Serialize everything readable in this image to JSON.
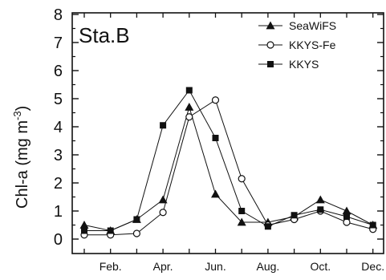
{
  "chart_data": {
    "type": "line",
    "title": "Sta.B",
    "ylabel": "Chl-a (mg m",
    "ylabel_sup": "-3",
    "ylabel_close": ")",
    "xlabel": "",
    "ylim": [
      0,
      8
    ],
    "y_ticks": [
      "0",
      "1",
      "2",
      "3",
      "4",
      "5",
      "6",
      "7",
      "8"
    ],
    "x_tick_labels": [
      "Feb.",
      "Apr.",
      "Jun.",
      "Aug.",
      "Oct.",
      "Dec."
    ],
    "x_tick_values": [
      2,
      4,
      6,
      8,
      10,
      12
    ],
    "xlim": [
      0.5,
      12.5
    ],
    "legend_position": "top-right",
    "series": [
      {
        "name": "SeaWiFS",
        "marker": "triangle",
        "x": [
          1,
          2,
          3,
          4,
          5,
          6,
          7,
          8,
          9,
          10,
          11,
          12
        ],
        "values": [
          0.5,
          0.3,
          0.7,
          1.4,
          4.7,
          1.6,
          0.6,
          0.6,
          0.8,
          1.4,
          1.0,
          0.5
        ]
      },
      {
        "name": "KKYS-Fe",
        "marker": "open-circle",
        "x": [
          1,
          2,
          3,
          4,
          5,
          6,
          7,
          8,
          9,
          10,
          11,
          12
        ],
        "values": [
          0.15,
          0.15,
          0.2,
          0.95,
          4.35,
          4.95,
          2.15,
          0.5,
          0.7,
          1.0,
          0.6,
          0.35
        ]
      },
      {
        "name": "KKYS",
        "marker": "filled-square",
        "x": [
          1,
          2,
          3,
          4,
          5,
          6,
          7,
          8,
          9,
          10,
          11,
          12
        ],
        "values": [
          0.3,
          0.3,
          0.7,
          4.05,
          5.3,
          3.6,
          1.0,
          0.45,
          0.85,
          1.05,
          0.8,
          0.5
        ]
      }
    ]
  }
}
